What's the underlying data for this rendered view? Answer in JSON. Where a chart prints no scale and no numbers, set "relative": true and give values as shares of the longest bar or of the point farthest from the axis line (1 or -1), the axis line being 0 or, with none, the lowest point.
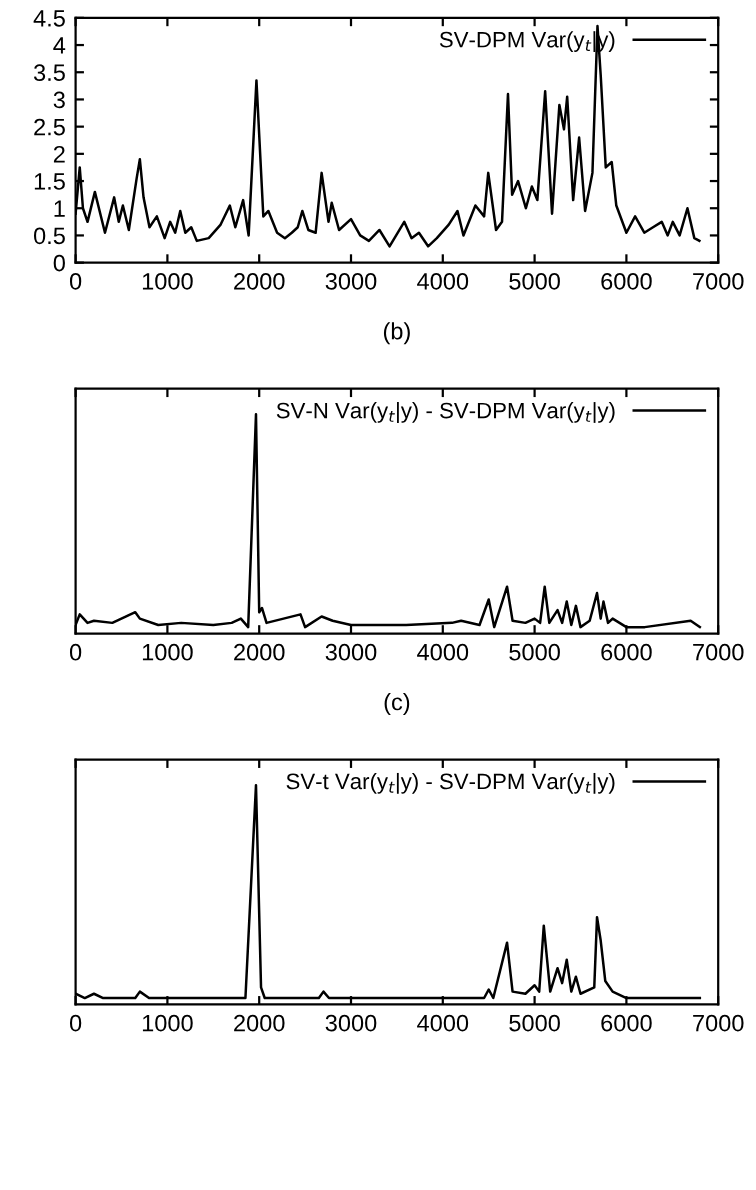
{
  "chart_data": [
    {
      "type": "line",
      "xlabel": "(b)",
      "xlim": [
        0,
        7000
      ],
      "xticks": [
        0,
        1000,
        2000,
        3000,
        4000,
        5000,
        6000,
        7000
      ],
      "ylim": [
        0,
        4.5
      ],
      "yticks": [
        0,
        0.5,
        1,
        1.5,
        2,
        2.5,
        3,
        3.5,
        4,
        4.5
      ],
      "legend": "top right",
      "grid": false,
      "series": [
        {
          "name": "SV-DPM Var(y$_{t}$|y)",
          "color": "#000000",
          "x": [
            0,
            45,
            80,
            130,
            210,
            320,
            420,
            470,
            515,
            580,
            665,
            700,
            740,
            805,
            885,
            970,
            1030,
            1085,
            1140,
            1195,
            1260,
            1320,
            1450,
            1580,
            1680,
            1740,
            1825,
            1885,
            1970,
            2045,
            2100,
            2195,
            2280,
            2355,
            2420,
            2470,
            2535,
            2615,
            2680,
            2755,
            2790,
            2870,
            3000,
            3100,
            3195,
            3310,
            3420,
            3580,
            3660,
            3740,
            3840,
            3935,
            4065,
            4160,
            4225,
            4355,
            4450,
            4495,
            4580,
            4645,
            4710,
            4755,
            4820,
            4905,
            4970,
            5030,
            5115,
            5190,
            5270,
            5320,
            5355,
            5420,
            5485,
            5550,
            5630,
            5685,
            5720,
            5775,
            5840,
            5890,
            6000,
            6095,
            6195,
            6290,
            6385,
            6450,
            6505,
            6580,
            6665,
            6740,
            6795
          ],
          "values": [
            0.9,
            1.75,
            1.0,
            0.75,
            1.3,
            0.55,
            1.2,
            0.75,
            1.05,
            0.6,
            1.55,
            1.9,
            1.2,
            0.65,
            0.85,
            0.45,
            0.75,
            0.55,
            0.95,
            0.55,
            0.65,
            0.4,
            0.45,
            0.7,
            1.05,
            0.65,
            1.15,
            0.5,
            3.35,
            0.85,
            0.95,
            0.55,
            0.45,
            0.55,
            0.65,
            0.95,
            0.6,
            0.55,
            1.65,
            0.75,
            1.1,
            0.6,
            0.8,
            0.5,
            0.4,
            0.6,
            0.3,
            0.75,
            0.45,
            0.55,
            0.3,
            0.45,
            0.7,
            0.95,
            0.5,
            1.05,
            0.85,
            1.65,
            0.6,
            0.75,
            3.1,
            1.25,
            1.5,
            1.0,
            1.4,
            1.15,
            3.15,
            0.9,
            2.9,
            2.45,
            3.05,
            1.15,
            2.3,
            0.95,
            1.65,
            4.35,
            3.45,
            1.75,
            1.85,
            1.05,
            0.55,
            0.85,
            0.55,
            0.65,
            0.75,
            0.5,
            0.75,
            0.5,
            1.0,
            0.45,
            0.4
          ]
        }
      ]
    },
    {
      "type": "line",
      "xlabel": "(c)",
      "xlim": [
        0,
        7000
      ],
      "xticks": [
        0,
        1000,
        2000,
        3000,
        4000,
        5000,
        6000,
        7000
      ],
      "relative": true,
      "tick_labels": "x",
      "legend": "top right",
      "grid": false,
      "series": [
        {
          "name": "SV-N Var(y$_{t}$|y) - SV-DPM Var(y$_{t}$|y)",
          "color": "#000000",
          "x": [
            0,
            45,
            130,
            200,
            400,
            650,
            700,
            900,
            1150,
            1500,
            1700,
            1800,
            1880,
            1965,
            2000,
            2030,
            2080,
            2450,
            2500,
            2680,
            2800,
            3000,
            3600,
            4100,
            4200,
            4400,
            4500,
            4560,
            4700,
            4760,
            4900,
            5000,
            5060,
            5110,
            5160,
            5250,
            5300,
            5350,
            5400,
            5450,
            5500,
            5600,
            5680,
            5720,
            5750,
            5800,
            5850,
            6000,
            6200,
            6700,
            6800
          ],
          "values": [
            0.01,
            0.06,
            0.02,
            0.03,
            0.02,
            0.07,
            0.04,
            0.01,
            0.02,
            0.01,
            0.02,
            0.04,
            0.0,
            1.0,
            0.07,
            0.09,
            0.02,
            0.06,
            0.0,
            0.05,
            0.03,
            0.01,
            0.01,
            0.02,
            0.03,
            0.01,
            0.13,
            0.0,
            0.19,
            0.03,
            0.02,
            0.04,
            0.02,
            0.19,
            0.02,
            0.08,
            0.02,
            0.12,
            0.01,
            0.1,
            0.0,
            0.03,
            0.16,
            0.04,
            0.12,
            0.02,
            0.04,
            0.0,
            0.0,
            0.03,
            0.0
          ]
        }
      ]
    },
    {
      "type": "line",
      "xlim": [
        0,
        7000
      ],
      "xticks": [
        0,
        1000,
        2000,
        3000,
        4000,
        5000,
        6000,
        7000
      ],
      "relative": true,
      "tick_labels": "x",
      "legend": "top right",
      "grid": false,
      "series": [
        {
          "name": "SV-t Var(y$_{t}$|y) - SV-DPM Var(y$_{t}$|y)",
          "color": "#000000",
          "x": [
            0,
            100,
            200,
            300,
            650,
            700,
            800,
            1850,
            1965,
            2020,
            2060,
            2650,
            2700,
            2760,
            4450,
            4500,
            4550,
            4700,
            4760,
            4900,
            5000,
            5050,
            5100,
            5170,
            5250,
            5300,
            5350,
            5400,
            5450,
            5500,
            5650,
            5680,
            5720,
            5770,
            5850,
            6000,
            6800
          ],
          "values": [
            0.02,
            0.0,
            0.02,
            0.0,
            0.0,
            0.03,
            0.0,
            0.0,
            1.0,
            0.05,
            0.0,
            0.0,
            0.03,
            0.0,
            0.0,
            0.04,
            0.0,
            0.26,
            0.03,
            0.02,
            0.06,
            0.03,
            0.34,
            0.03,
            0.14,
            0.07,
            0.18,
            0.03,
            0.1,
            0.02,
            0.05,
            0.38,
            0.27,
            0.08,
            0.03,
            0.0,
            0.0
          ]
        }
      ]
    }
  ]
}
